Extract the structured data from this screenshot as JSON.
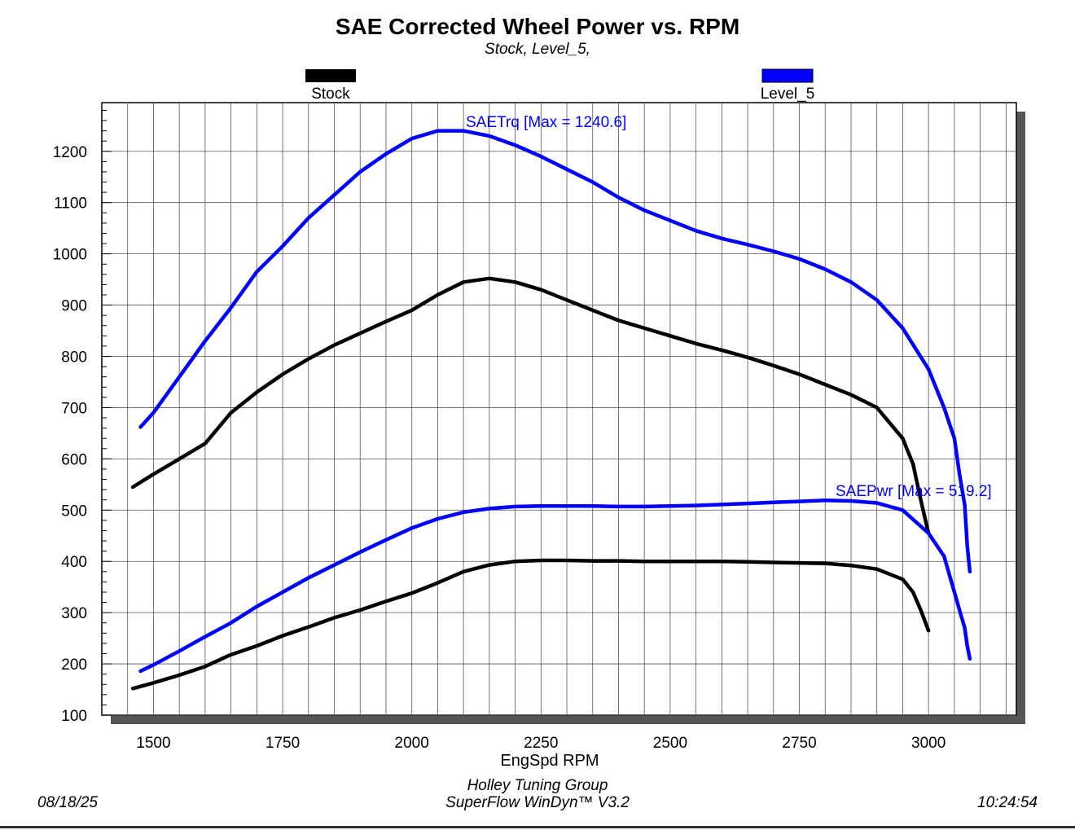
{
  "chart_data": {
    "type": "line",
    "title": "SAE Corrected Wheel Power vs. RPM",
    "subtitle": "Stock, Level_5,",
    "xlabel": "EngSpd RPM",
    "ylabel": "",
    "xlim": [
      1400,
      3170
    ],
    "ylim": [
      100,
      1295
    ],
    "xticks": [
      1500,
      1750,
      2000,
      2250,
      2500,
      2750,
      3000
    ],
    "yticks": [
      100,
      200,
      300,
      400,
      500,
      600,
      700,
      800,
      900,
      1000,
      1100,
      1200
    ],
    "grid": true,
    "legend": [
      {
        "name": "Stock",
        "color": "#000000"
      },
      {
        "name": "Level_5",
        "color": "#0000ff"
      }
    ],
    "annotations": {
      "torque": "SAETrq [Max = 1240.6]",
      "power": "SAEPwr [Max = 519.2]"
    },
    "series": [
      {
        "name": "Level_5 SAETrq",
        "run": "Level_5",
        "metric": "SAETrq",
        "color": "#0000ff",
        "x": [
          1475,
          1500,
          1550,
          1600,
          1650,
          1700,
          1750,
          1800,
          1850,
          1900,
          1950,
          2000,
          2050,
          2100,
          2150,
          2200,
          2250,
          2300,
          2350,
          2400,
          2450,
          2500,
          2550,
          2600,
          2650,
          2700,
          2750,
          2800,
          2850,
          2900,
          2950,
          3000,
          3030,
          3050,
          3060,
          3070,
          3075,
          3080
        ],
        "y": [
          662,
          690,
          760,
          830,
          895,
          965,
          1015,
          1070,
          1115,
          1160,
          1195,
          1225,
          1240,
          1240,
          1230,
          1212,
          1190,
          1165,
          1140,
          1110,
          1085,
          1065,
          1045,
          1030,
          1018,
          1005,
          990,
          970,
          945,
          910,
          855,
          775,
          700,
          640,
          570,
          510,
          430,
          380
        ]
      },
      {
        "name": "Stock SAETrq",
        "run": "Stock",
        "metric": "SAETrq",
        "color": "#000000",
        "x": [
          1460,
          1500,
          1550,
          1600,
          1650,
          1700,
          1750,
          1800,
          1850,
          1900,
          1950,
          2000,
          2050,
          2100,
          2150,
          2200,
          2250,
          2300,
          2350,
          2400,
          2450,
          2500,
          2550,
          2600,
          2650,
          2700,
          2750,
          2800,
          2850,
          2900,
          2950,
          2970,
          2985,
          3000
        ],
        "y": [
          545,
          570,
          600,
          630,
          690,
          730,
          765,
          795,
          822,
          845,
          868,
          890,
          920,
          945,
          952,
          945,
          930,
          910,
          890,
          870,
          855,
          840,
          825,
          812,
          798,
          782,
          765,
          745,
          725,
          700,
          640,
          590,
          520,
          455
        ]
      },
      {
        "name": "Level_5 SAEPwr",
        "run": "Level_5",
        "metric": "SAEPwr",
        "color": "#0000ff",
        "x": [
          1475,
          1500,
          1550,
          1600,
          1650,
          1700,
          1750,
          1800,
          1850,
          1900,
          1950,
          2000,
          2050,
          2100,
          2150,
          2200,
          2250,
          2300,
          2350,
          2400,
          2450,
          2500,
          2550,
          2600,
          2650,
          2700,
          2750,
          2800,
          2850,
          2900,
          2950,
          3000,
          3030,
          3050,
          3060,
          3070,
          3075,
          3080
        ],
        "y": [
          186,
          198,
          225,
          253,
          280,
          312,
          340,
          368,
          393,
          418,
          442,
          465,
          483,
          496,
          503,
          507,
          508,
          508,
          508,
          507,
          507,
          508,
          509,
          511,
          513,
          515,
          517,
          519,
          518,
          514,
          500,
          455,
          410,
          340,
          305,
          270,
          235,
          210
        ]
      },
      {
        "name": "Stock SAEPwr",
        "run": "Stock",
        "metric": "SAEPwr",
        "color": "#000000",
        "x": [
          1460,
          1500,
          1550,
          1600,
          1650,
          1700,
          1750,
          1800,
          1850,
          1900,
          1950,
          2000,
          2050,
          2100,
          2150,
          2200,
          2250,
          2300,
          2350,
          2400,
          2450,
          2500,
          2550,
          2600,
          2650,
          2700,
          2750,
          2800,
          2850,
          2900,
          2950,
          2970,
          2985,
          3000
        ],
        "y": [
          152,
          163,
          178,
          195,
          218,
          235,
          255,
          272,
          290,
          305,
          322,
          338,
          358,
          380,
          393,
          400,
          402,
          402,
          401,
          401,
          400,
          400,
          400,
          400,
          399,
          398,
          397,
          396,
          392,
          385,
          365,
          340,
          305,
          265
        ]
      }
    ]
  },
  "footer": {
    "date": "08/18/25",
    "company": "Holley Tuning Group",
    "software": "SuperFlow WinDyn™ V3.2",
    "time": "10:24:54"
  }
}
